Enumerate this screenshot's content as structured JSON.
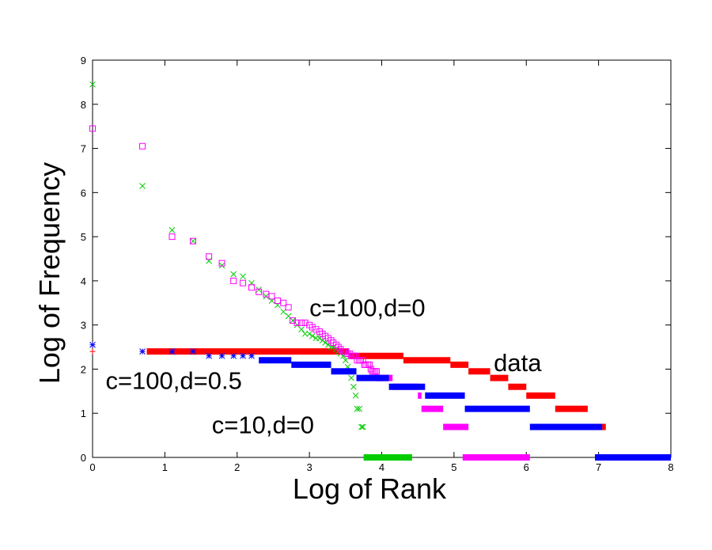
{
  "chart_data": {
    "type": "scatter",
    "xlabel": "Log of Rank",
    "ylabel": "Log of Frequency",
    "xlim": [
      0,
      8
    ],
    "ylim": [
      0,
      9
    ],
    "xticks": [
      "0",
      "1",
      "2",
      "3",
      "4",
      "5",
      "6",
      "7",
      "8"
    ],
    "yticks": [
      "0",
      "1",
      "2",
      "3",
      "4",
      "5",
      "6",
      "7",
      "8",
      "9"
    ],
    "grid": false,
    "legend": "none",
    "annotations": [
      {
        "text": "c=100,d=0",
        "x": 3.0,
        "y": 3.2
      },
      {
        "text": "data",
        "x": 5.55,
        "y": 1.95
      },
      {
        "text": "c=100,d=0.5",
        "x": 0.18,
        "y": 1.55
      },
      {
        "text": "c=10,d=0",
        "x": 1.65,
        "y": 0.55
      }
    ],
    "series": [
      {
        "color": "#ff0000",
        "marker": "plus",
        "points": [
          [
            0,
            2.4
          ],
          [
            0.69,
            2.4
          ]
        ],
        "segments": [
          [
            0.75,
            2.4,
            3.55,
            2.4
          ],
          [
            3.55,
            2.3,
            4.3,
            2.3
          ],
          [
            4.3,
            2.2,
            4.95,
            2.2
          ],
          [
            4.95,
            2.1,
            5.2,
            2.1
          ],
          [
            5.2,
            1.95,
            5.5,
            1.95
          ],
          [
            5.5,
            1.8,
            5.75,
            1.8
          ],
          [
            5.75,
            1.6,
            6.0,
            1.6
          ],
          [
            6.0,
            1.4,
            6.4,
            1.4
          ],
          [
            6.4,
            1.1,
            6.85,
            1.1
          ],
          [
            6.85,
            0.69,
            7.1,
            0.69
          ]
        ]
      },
      {
        "color": "#00cc00",
        "marker": "x",
        "points": [
          [
            0,
            8.45
          ],
          [
            0.69,
            6.15
          ],
          [
            1.1,
            5.15
          ],
          [
            1.39,
            4.9
          ],
          [
            1.61,
            4.45
          ],
          [
            1.79,
            4.35
          ],
          [
            1.95,
            4.15
          ],
          [
            2.08,
            4.1
          ],
          [
            2.2,
            3.95
          ],
          [
            2.3,
            3.8
          ],
          [
            2.4,
            3.65
          ],
          [
            2.48,
            3.55
          ],
          [
            2.56,
            3.45
          ],
          [
            2.64,
            3.3
          ],
          [
            2.71,
            3.2
          ],
          [
            2.77,
            3.1
          ],
          [
            2.83,
            3.0
          ],
          [
            2.89,
            2.9
          ],
          [
            2.94,
            2.8
          ],
          [
            3.0,
            2.8
          ],
          [
            3.04,
            2.75
          ],
          [
            3.09,
            2.7
          ],
          [
            3.14,
            2.7
          ],
          [
            3.18,
            2.65
          ],
          [
            3.22,
            2.6
          ],
          [
            3.26,
            2.55
          ],
          [
            3.3,
            2.5
          ],
          [
            3.33,
            2.5
          ],
          [
            3.37,
            2.45
          ],
          [
            3.4,
            2.4
          ],
          [
            3.43,
            2.35
          ],
          [
            3.47,
            2.3
          ],
          [
            3.5,
            2.2
          ],
          [
            3.53,
            2.05
          ],
          [
            3.56,
            1.95
          ],
          [
            3.58,
            1.8
          ],
          [
            3.61,
            1.6
          ],
          [
            3.64,
            1.4
          ],
          [
            3.66,
            1.1
          ],
          [
            3.69,
            1.1
          ],
          [
            3.72,
            0.69
          ],
          [
            3.74,
            0.69
          ]
        ],
        "segments": [
          [
            3.75,
            0,
            4.42,
            0
          ]
        ]
      },
      {
        "color": "#ff00ff",
        "marker": "square",
        "points": [
          [
            0,
            7.45
          ],
          [
            0.69,
            7.05
          ],
          [
            1.1,
            5.0
          ],
          [
            1.39,
            4.9
          ],
          [
            1.61,
            4.55
          ],
          [
            1.79,
            4.4
          ],
          [
            1.95,
            4.0
          ],
          [
            2.08,
            3.95
          ],
          [
            2.2,
            3.85
          ],
          [
            2.3,
            3.75
          ],
          [
            2.4,
            3.7
          ],
          [
            2.48,
            3.65
          ],
          [
            2.56,
            3.55
          ],
          [
            2.64,
            3.5
          ],
          [
            2.71,
            3.4
          ],
          [
            2.77,
            3.1
          ],
          [
            2.83,
            3.05
          ],
          [
            2.89,
            3.05
          ],
          [
            2.94,
            3.05
          ],
          [
            3.0,
            3.0
          ],
          [
            3.04,
            2.95
          ],
          [
            3.09,
            2.9
          ],
          [
            3.14,
            2.85
          ],
          [
            3.18,
            2.8
          ],
          [
            3.22,
            2.75
          ],
          [
            3.26,
            2.7
          ],
          [
            3.3,
            2.65
          ],
          [
            3.33,
            2.6
          ],
          [
            3.37,
            2.55
          ],
          [
            3.4,
            2.5
          ],
          [
            3.43,
            2.45
          ],
          [
            3.47,
            2.4
          ],
          [
            3.5,
            2.4
          ],
          [
            3.53,
            2.35
          ],
          [
            3.56,
            2.35
          ],
          [
            3.58,
            2.3
          ],
          [
            3.61,
            2.3
          ],
          [
            3.64,
            2.3
          ],
          [
            3.66,
            2.2
          ],
          [
            3.69,
            2.2
          ],
          [
            3.71,
            2.2
          ],
          [
            3.74,
            2.2
          ],
          [
            3.76,
            2.1
          ],
          [
            3.78,
            2.1
          ],
          [
            3.81,
            2.1
          ],
          [
            3.83,
            2.1
          ],
          [
            3.85,
            2.0
          ],
          [
            3.87,
            1.95
          ],
          [
            3.89,
            1.95
          ],
          [
            3.91,
            1.95
          ],
          [
            3.93,
            1.95
          ],
          [
            3.95,
            1.8
          ],
          [
            3.97,
            1.8
          ],
          [
            3.99,
            1.8
          ]
        ],
        "segments": [
          [
            4.0,
            1.8,
            4.15,
            1.8
          ],
          [
            4.15,
            1.6,
            4.5,
            1.6
          ],
          [
            4.5,
            1.4,
            4.55,
            1.4
          ],
          [
            4.55,
            1.1,
            4.85,
            1.1
          ],
          [
            4.85,
            0.69,
            5.2,
            0.69
          ],
          [
            5.12,
            0,
            6.05,
            0
          ]
        ]
      },
      {
        "color": "#0000ff",
        "marker": "asterisk",
        "points": [
          [
            0,
            2.55
          ],
          [
            0.69,
            2.4
          ],
          [
            1.1,
            2.4
          ],
          [
            1.39,
            2.4
          ],
          [
            1.61,
            2.3
          ],
          [
            1.79,
            2.3
          ],
          [
            1.95,
            2.3
          ],
          [
            2.08,
            2.3
          ],
          [
            2.2,
            2.3
          ]
        ],
        "segments": [
          [
            2.3,
            2.2,
            2.75,
            2.2
          ],
          [
            2.75,
            2.1,
            3.3,
            2.1
          ],
          [
            3.3,
            1.95,
            3.65,
            1.95
          ],
          [
            3.65,
            1.8,
            4.1,
            1.8
          ],
          [
            4.1,
            1.6,
            4.6,
            1.6
          ],
          [
            4.6,
            1.4,
            5.15,
            1.4
          ],
          [
            5.15,
            1.1,
            6.05,
            1.1
          ],
          [
            6.05,
            0.69,
            7.05,
            0.69
          ],
          [
            6.95,
            0,
            8.0,
            0
          ]
        ]
      }
    ]
  }
}
